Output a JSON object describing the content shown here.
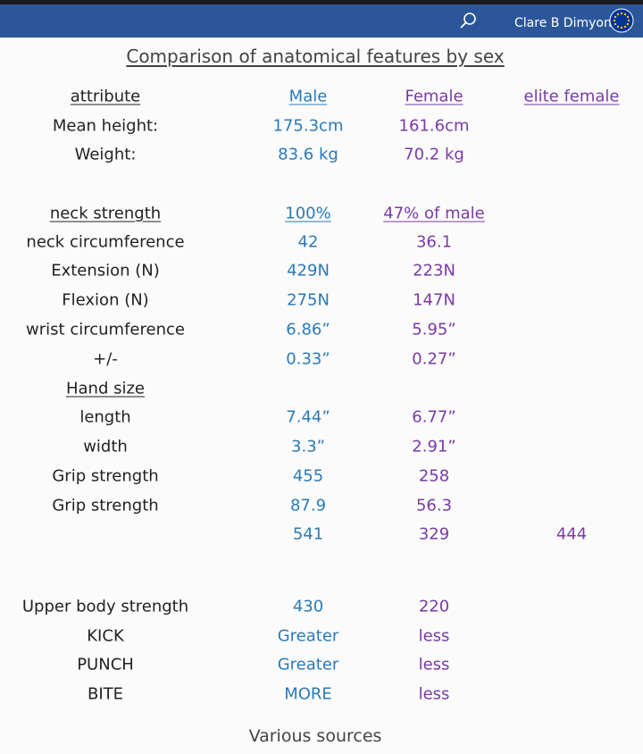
{
  "header": {
    "user_name": "Clare B Dimyon"
  },
  "title": "Comparison of anatomical features by sex",
  "table": {
    "columns": [
      "attribute",
      "Male",
      "Female",
      "elite female"
    ],
    "rows": [
      [
        "Mean height:",
        "175.3cm",
        "161.6cm",
        null
      ],
      [
        "Weight:",
        "83.6 kg",
        "70.2 kg",
        null
      ],
      [
        "neck strength",
        "100%",
        "47% of male",
        null
      ],
      [
        "neck circumference",
        "42",
        "36.1",
        null
      ],
      [
        "Extension (N)",
        "429N",
        "223N",
        null
      ],
      [
        "Flexion (N)",
        "275N",
        "147N",
        null
      ],
      [
        "wrist circumference",
        "6.86”",
        "5.95”",
        null
      ],
      [
        "+/-",
        "0.33”",
        "0.27”",
        null
      ],
      [
        "Hand size",
        null,
        null,
        null
      ],
      [
        "length",
        "7.44”",
        "6.77”",
        null
      ],
      [
        "width",
        "3.3”",
        "2.91”",
        null
      ],
      [
        "Grip strength",
        "455",
        "258",
        null
      ],
      [
        "Grip strength",
        "87.9",
        "56.3",
        null
      ],
      [
        null,
        "541",
        "329",
        "444"
      ],
      [
        "Upper body strength",
        "430",
        "220",
        null
      ],
      [
        "KICK",
        "Greater",
        "less",
        null
      ],
      [
        "PUNCH",
        "Greater",
        "less",
        null
      ],
      [
        "BITE",
        "MORE",
        "less",
        null
      ]
    ]
  },
  "footer": "Various sources"
}
